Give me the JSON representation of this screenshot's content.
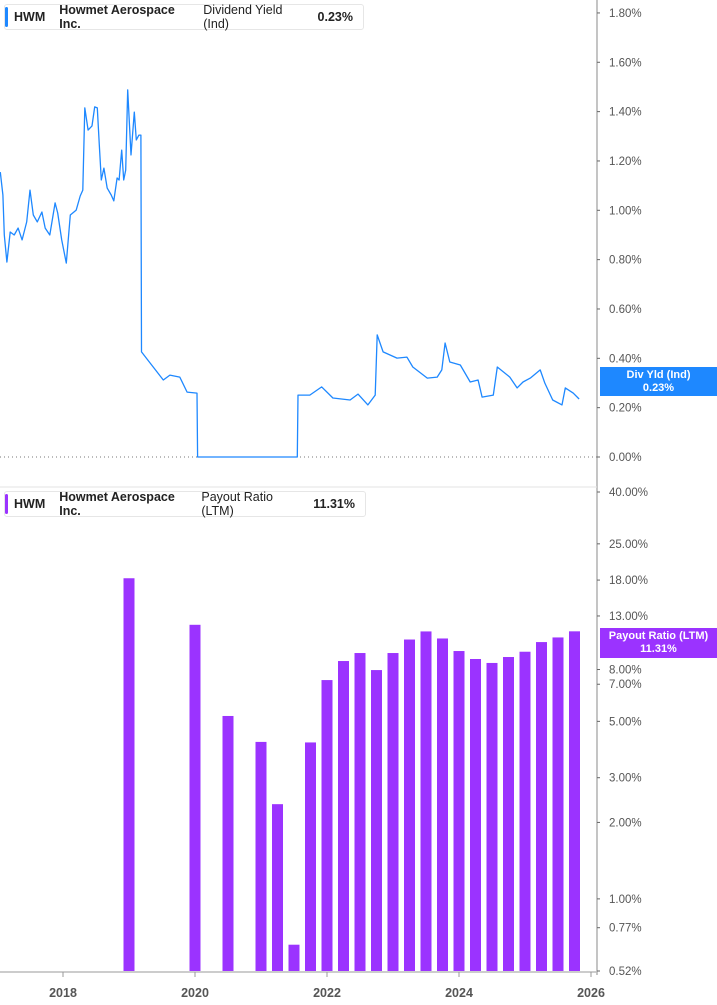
{
  "colors": {
    "dividend_yield": "#1e88ff",
    "payout_ratio": "#9b33ff",
    "axis": "#9e9e9e"
  },
  "top_legend": {
    "ticker": "HWM",
    "company": "Howmet Aerospace Inc.",
    "metric": "Dividend Yield (Ind)",
    "value": "0.23%"
  },
  "top_tag": {
    "label": "Div Yld (Ind)",
    "value": "0.23%"
  },
  "bottom_legend": {
    "ticker": "HWM",
    "company": "Howmet Aerospace Inc.",
    "metric": "Payout Ratio (LTM)",
    "value": "11.31%"
  },
  "bottom_tag": {
    "label": "Payout Ratio (LTM)",
    "value": "11.31%"
  },
  "chart_data": [
    {
      "type": "line",
      "series_name": "Dividend Yield (Ind)",
      "y_unit": "%",
      "x_ticks": [
        "2018",
        "2020",
        "2022",
        "2024",
        "2026"
      ],
      "y_ticks": [
        "0.00%",
        "0.20%",
        "0.40%",
        "0.60%",
        "0.80%",
        "1.00%",
        "1.20%",
        "1.40%",
        "1.60%",
        "1.80%"
      ],
      "ylim": [
        0,
        1.8
      ],
      "zero_line": "dotted",
      "points": [
        [
          2017.05,
          1.155
        ],
        [
          2017.09,
          1.062
        ],
        [
          2017.11,
          0.9
        ],
        [
          2017.15,
          0.79
        ],
        [
          2017.2,
          0.912
        ],
        [
          2017.26,
          0.9
        ],
        [
          2017.32,
          0.928
        ],
        [
          2017.38,
          0.88
        ],
        [
          2017.45,
          0.953
        ],
        [
          2017.5,
          1.082
        ],
        [
          2017.55,
          0.981
        ],
        [
          2017.61,
          0.953
        ],
        [
          2017.68,
          0.993
        ],
        [
          2017.73,
          0.928
        ],
        [
          2017.8,
          0.9
        ],
        [
          2017.88,
          1.03
        ],
        [
          2017.92,
          0.989
        ],
        [
          2017.98,
          0.88
        ],
        [
          2018.05,
          0.786
        ],
        [
          2018.11,
          0.981
        ],
        [
          2018.2,
          1.001
        ],
        [
          2018.26,
          1.058
        ],
        [
          2018.3,
          1.082
        ],
        [
          2018.33,
          1.415
        ],
        [
          2018.38,
          1.325
        ],
        [
          2018.44,
          1.342
        ],
        [
          2018.48,
          1.419
        ],
        [
          2018.52,
          1.415
        ],
        [
          2018.55,
          1.265
        ],
        [
          2018.58,
          1.123
        ],
        [
          2018.62,
          1.171
        ],
        [
          2018.67,
          1.09
        ],
        [
          2018.73,
          1.062
        ],
        [
          2018.77,
          1.038
        ],
        [
          2018.82,
          1.131
        ],
        [
          2018.85,
          1.123
        ],
        [
          2018.89,
          1.244
        ],
        [
          2018.92,
          1.123
        ],
        [
          2018.95,
          1.163
        ],
        [
          2018.98,
          1.488
        ],
        [
          2019.03,
          1.224
        ],
        [
          2019.08,
          1.398
        ],
        [
          2019.11,
          1.285
        ],
        [
          2019.15,
          1.305
        ],
        [
          2019.18,
          1.305
        ],
        [
          2019.19,
          0.426
        ],
        [
          2019.32,
          0.381
        ],
        [
          2019.52,
          0.312
        ],
        [
          2019.62,
          0.332
        ],
        [
          2019.77,
          0.324
        ],
        [
          2019.88,
          0.263
        ],
        [
          2020.03,
          0.259
        ],
        [
          2020.04,
          0
        ],
        [
          2021.55,
          0
        ],
        [
          2021.56,
          0.251
        ],
        [
          2021.74,
          0.251
        ],
        [
          2021.92,
          0.284
        ],
        [
          2022.09,
          0.239
        ],
        [
          2022.35,
          0.231
        ],
        [
          2022.47,
          0.255
        ],
        [
          2022.62,
          0.211
        ],
        [
          2022.73,
          0.251
        ],
        [
          2022.76,
          0.495
        ],
        [
          2022.85,
          0.426
        ],
        [
          2023.06,
          0.401
        ],
        [
          2023.21,
          0.405
        ],
        [
          2023.3,
          0.365
        ],
        [
          2023.52,
          0.32
        ],
        [
          2023.67,
          0.324
        ],
        [
          2023.74,
          0.353
        ],
        [
          2023.79,
          0.462
        ],
        [
          2023.86,
          0.385
        ],
        [
          2024.02,
          0.373
        ],
        [
          2024.17,
          0.304
        ],
        [
          2024.29,
          0.312
        ],
        [
          2024.35,
          0.243
        ],
        [
          2024.52,
          0.251
        ],
        [
          2024.58,
          0.365
        ],
        [
          2024.77,
          0.324
        ],
        [
          2024.88,
          0.28
        ],
        [
          2024.97,
          0.304
        ],
        [
          2025.08,
          0.32
        ],
        [
          2025.23,
          0.353
        ],
        [
          2025.3,
          0.3
        ],
        [
          2025.42,
          0.231
        ],
        [
          2025.56,
          0.211
        ],
        [
          2025.61,
          0.28
        ],
        [
          2025.73,
          0.259
        ],
        [
          2025.82,
          0.235
        ]
      ]
    },
    {
      "type": "bar",
      "series_name": "Payout Ratio (LTM)",
      "y_unit": "%",
      "y_scale": "log",
      "ylim": [
        0.52,
        40
      ],
      "y_ticks": [
        "40.00%",
        "25.00%",
        "18.00%",
        "13.00%",
        "8.00%",
        "7.00%",
        "5.00%",
        "3.00%",
        "2.00%",
        "1.00%",
        "0.77%",
        "0.52%"
      ],
      "y_tick_values": [
        40,
        25,
        18,
        13,
        8,
        7,
        5,
        3,
        2,
        1,
        0.77,
        0.52
      ],
      "x_ticks": [
        "2018",
        "2020",
        "2022",
        "2024",
        "2026"
      ],
      "bars": [
        [
          2019.0,
          18.3
        ],
        [
          2020.0,
          12.0
        ],
        [
          2020.5,
          5.25
        ],
        [
          2021.0,
          4.15
        ],
        [
          2021.25,
          2.36
        ],
        [
          2021.5,
          0.66
        ],
        [
          2021.75,
          4.13
        ],
        [
          2022.0,
          7.27
        ],
        [
          2022.25,
          8.64
        ],
        [
          2022.5,
          9.29
        ],
        [
          2022.75,
          7.96
        ],
        [
          2023.0,
          9.29
        ],
        [
          2023.25,
          10.5
        ],
        [
          2023.5,
          11.3
        ],
        [
          2023.75,
          10.6
        ],
        [
          2024.0,
          9.46
        ],
        [
          2024.25,
          8.8
        ],
        [
          2024.5,
          8.49
        ],
        [
          2024.75,
          8.96
        ],
        [
          2025.0,
          9.4
        ],
        [
          2025.25,
          10.26
        ],
        [
          2025.5,
          10.7
        ],
        [
          2025.75,
          11.31
        ]
      ]
    }
  ]
}
